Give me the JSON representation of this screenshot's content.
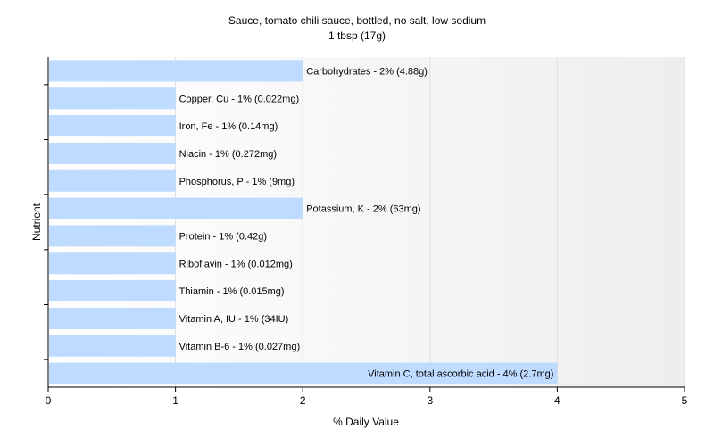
{
  "chart_data": {
    "type": "bar",
    "orientation": "horizontal",
    "title": "Sauce, tomato chili sauce, bottled, no salt, low sodium",
    "subtitle": "1 tbsp (17g)",
    "xlabel": "% Daily Value",
    "ylabel": "Nutrient",
    "xlim": [
      0,
      5
    ],
    "xticks": [
      "0",
      "1",
      "2",
      "3",
      "4",
      "5"
    ],
    "grid": true,
    "bar_color": "#bfdbff",
    "categories": [
      "Carbohydrates",
      "Copper, Cu",
      "Iron, Fe",
      "Niacin",
      "Phosphorus, P",
      "Potassium, K",
      "Protein",
      "Riboflavin",
      "Thiamin",
      "Vitamin A, IU",
      "Vitamin B-6",
      "Vitamin C, total ascorbic acid"
    ],
    "values": [
      2,
      1,
      1,
      1,
      1,
      2,
      1,
      1,
      1,
      1,
      1,
      4
    ],
    "labels": [
      "Carbohydrates - 2% (4.88g)",
      "Copper, Cu - 1% (0.022mg)",
      "Iron, Fe - 1% (0.14mg)",
      "Niacin - 1% (0.272mg)",
      "Phosphorus, P - 1% (9mg)",
      "Potassium, K - 2% (63mg)",
      "Protein - 1% (0.42g)",
      "Riboflavin - 1% (0.012mg)",
      "Thiamin - 1% (0.015mg)",
      "Vitamin A, IU - 1% (34IU)",
      "Vitamin B-6 - 1% (0.027mg)",
      "Vitamin C, total ascorbic acid - 4% (2.7mg)"
    ]
  }
}
